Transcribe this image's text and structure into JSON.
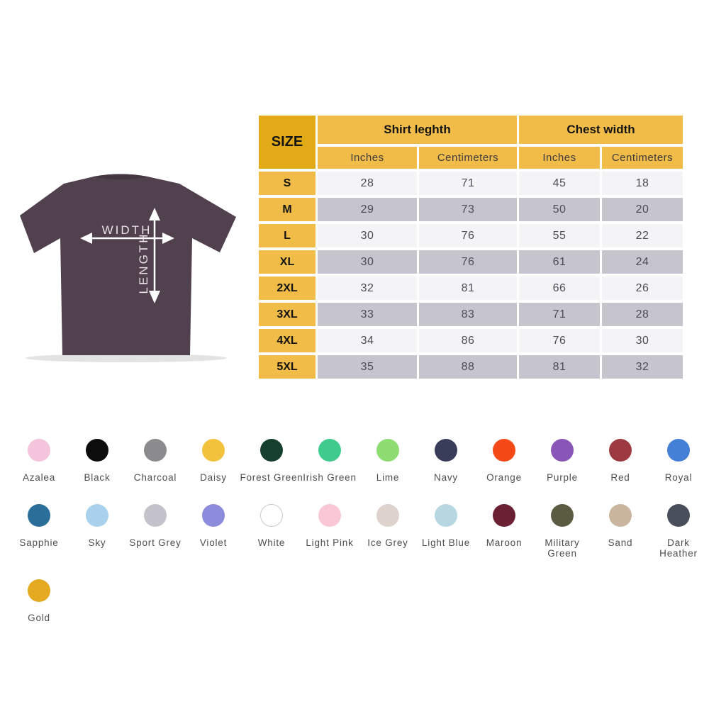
{
  "shirt": {
    "width_label": "WIDTH",
    "length_label": "LENGTH",
    "body_color": "#51414e",
    "collar_color": "#443641",
    "arrow_color": "#ffffff",
    "label_color": "#ede2ea"
  },
  "table": {
    "size_header": "SIZE",
    "groups": [
      {
        "label": "Shirt leghth"
      },
      {
        "label": "Chest width"
      }
    ],
    "subheaders": [
      "Inches",
      "Centimeters",
      "Inches",
      "Centimeters"
    ],
    "rows": [
      {
        "size": "S",
        "values": [
          "28",
          "71",
          "45",
          "18"
        ]
      },
      {
        "size": "M",
        "values": [
          "29",
          "73",
          "50",
          "20"
        ]
      },
      {
        "size": "L",
        "values": [
          "30",
          "76",
          "55",
          "22"
        ]
      },
      {
        "size": "XL",
        "values": [
          "30",
          "76",
          "61",
          "24"
        ]
      },
      {
        "size": "2XL",
        "values": [
          "32",
          "81",
          "66",
          "26"
        ]
      },
      {
        "size": "3XL",
        "values": [
          "33",
          "83",
          "71",
          "28"
        ]
      },
      {
        "size": "4XL",
        "values": [
          "34",
          "86",
          "76",
          "30"
        ]
      },
      {
        "size": "5XL",
        "values": [
          "35",
          "88",
          "81",
          "32"
        ]
      }
    ],
    "header_gold": "#f1bc47",
    "header_dark_gold": "#e2aa16",
    "row_light": "#f4f4f7",
    "row_grey": "#c6c5cd"
  },
  "colors": [
    {
      "name": "Azalea",
      "hex": "#f4c3dc"
    },
    {
      "name": "Black",
      "hex": "#0c0c0c"
    },
    {
      "name": "Charcoal",
      "hex": "#8b8b8d"
    },
    {
      "name": "Daisy",
      "hex": "#f2c23d"
    },
    {
      "name": "Forest Green",
      "hex": "#173f2e"
    },
    {
      "name": "Irish Green",
      "hex": "#3fcb8e"
    },
    {
      "name": "Lime",
      "hex": "#8edc72"
    },
    {
      "name": "Navy",
      "hex": "#393d59"
    },
    {
      "name": "Orange",
      "hex": "#f54a18"
    },
    {
      "name": "Purple",
      "hex": "#8956b8"
    },
    {
      "name": "Red",
      "hex": "#9d3a41"
    },
    {
      "name": "Royal",
      "hex": "#4480d6"
    },
    {
      "name": "Sapphie",
      "hex": "#2a6f99"
    },
    {
      "name": "Sky",
      "hex": "#a9d1ed"
    },
    {
      "name": "Sport Grey",
      "hex": "#c4c3cb"
    },
    {
      "name": "Violet",
      "hex": "#8d8bdc"
    },
    {
      "name": "White",
      "hex": "#ffffff",
      "border": true
    },
    {
      "name": "Light Pink",
      "hex": "#fac7d5"
    },
    {
      "name": "Ice Grey",
      "hex": "#ded2cd"
    },
    {
      "name": "Light Blue",
      "hex": "#b7d7e2"
    },
    {
      "name": "Maroon",
      "hex": "#6b2034"
    },
    {
      "name": "Military Green",
      "hex": "#5b5b41",
      "wrap": true
    },
    {
      "name": "Sand",
      "hex": "#cab59e"
    },
    {
      "name": "Dark Heather",
      "hex": "#484f5a",
      "wrap": true
    },
    {
      "name": "Gold",
      "hex": "#e6a922"
    }
  ]
}
